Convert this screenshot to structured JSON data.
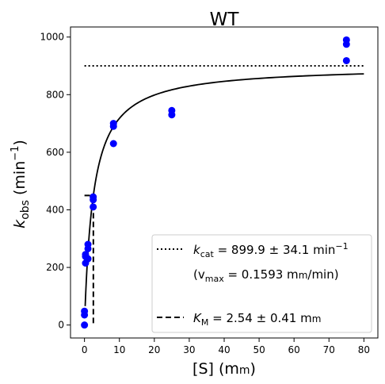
{
  "chart_data": {
    "type": "scatter",
    "title": "WT",
    "xlabel": {
      "main": "[S] (m",
      "unit_smallcaps": "m",
      "close": ")"
    },
    "ylabel": {
      "main": "k",
      "sub": "obs",
      "rest": " (min",
      "sup": "−1",
      "close": ")"
    },
    "xlim": [
      -4,
      84
    ],
    "ylim": [
      -45,
      1035
    ],
    "xticks": [
      0,
      10,
      20,
      30,
      40,
      50,
      60,
      70,
      80
    ],
    "yticks": [
      0,
      200,
      400,
      600,
      800,
      1000
    ],
    "points_color": "#0000ff",
    "points": [
      {
        "x": 0,
        "y": 0
      },
      {
        "x": 0,
        "y": 35
      },
      {
        "x": 0,
        "y": 48
      },
      {
        "x": 0.3,
        "y": 215
      },
      {
        "x": 0.3,
        "y": 238
      },
      {
        "x": 0.3,
        "y": 245
      },
      {
        "x": 1,
        "y": 230
      },
      {
        "x": 1,
        "y": 265
      },
      {
        "x": 1,
        "y": 280
      },
      {
        "x": 2.5,
        "y": 410
      },
      {
        "x": 2.5,
        "y": 435
      },
      {
        "x": 2.5,
        "y": 445
      },
      {
        "x": 8.3,
        "y": 630
      },
      {
        "x": 8.3,
        "y": 690
      },
      {
        "x": 8.3,
        "y": 700
      },
      {
        "x": 25,
        "y": 730
      },
      {
        "x": 25,
        "y": 745
      },
      {
        "x": 75,
        "y": 918
      },
      {
        "x": 75,
        "y": 975
      },
      {
        "x": 75,
        "y": 990
      }
    ],
    "fit": {
      "model": "michaelis-menten",
      "kcat": 899.9,
      "km": 2.54,
      "x_range": [
        0.2,
        80
      ]
    },
    "kcat_line": {
      "y": 899.9,
      "x_range": [
        0,
        80
      ]
    },
    "km_line": {
      "x": 2.54,
      "y_top": 450,
      "x_start": 0
    },
    "legend": {
      "position": "lower-right",
      "entries": [
        {
          "style": "dotted",
          "label_main": "k",
          "label_sub": "cat",
          "label_rest": " = 899.9 ± 34.1 min",
          "label_sup": "−1"
        },
        {
          "style": "none",
          "label_text": "(v",
          "label_sub": "max",
          "label_rest": " = 0.1593 m",
          "label_unit": "m",
          "label_end": "/min)"
        },
        {
          "style": "dashed",
          "label_main": "K",
          "label_sub": "M",
          "label_rest": " = 2.54 ± 0.41 m",
          "label_unit": "m"
        }
      ]
    }
  }
}
